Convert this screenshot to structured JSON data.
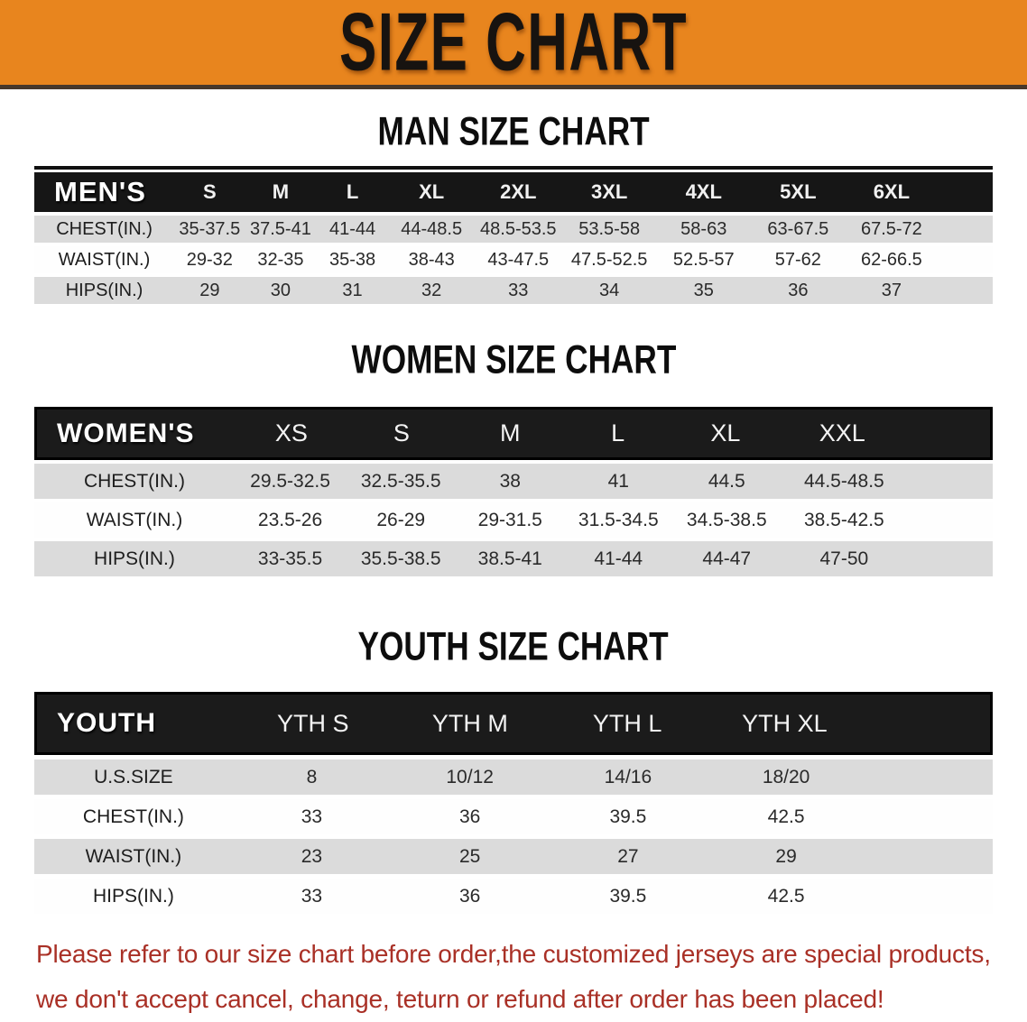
{
  "banner": {
    "title": "SIZE CHART",
    "bg_color": "#E8851E"
  },
  "sections": [
    {
      "heading": "MAN SIZE CHART",
      "table": {
        "corner_label": "MEN'S",
        "columns": [
          "S",
          "M",
          "L",
          "XL",
          "2XL",
          "3XL",
          "4XL",
          "5XL",
          "6XL"
        ],
        "rows": [
          {
            "label": "CHEST(IN.)",
            "values": [
              "35-37.5",
              "37.5-41",
              "41-44",
              "44-48.5",
              "48.5-53.5",
              "53.5-58",
              "58-63",
              "63-67.5",
              "67.5-72"
            ]
          },
          {
            "label": "WAIST(IN.)",
            "values": [
              "29-32",
              "32-35",
              "35-38",
              "38-43",
              "43-47.5",
              "47.5-52.5",
              "52.5-57",
              "57-62",
              "62-66.5"
            ]
          },
          {
            "label": "HIPS(IN.)",
            "values": [
              "29",
              "30",
              "31",
              "32",
              "33",
              "34",
              "35",
              "36",
              "37"
            ]
          }
        ]
      }
    },
    {
      "heading": "WOMEN SIZE CHART",
      "table": {
        "corner_label": "WOMEN'S",
        "columns": [
          "XS",
          "S",
          "M",
          "L",
          "XL",
          "XXL"
        ],
        "rows": [
          {
            "label": "CHEST(IN.)",
            "values": [
              "29.5-32.5",
              "32.5-35.5",
              "38",
              "41",
              "44.5",
              "44.5-48.5"
            ]
          },
          {
            "label": "WAIST(IN.)",
            "values": [
              "23.5-26",
              "26-29",
              "29-31.5",
              "31.5-34.5",
              "34.5-38.5",
              "38.5-42.5"
            ]
          },
          {
            "label": "HIPS(IN.)",
            "values": [
              "33-35.5",
              "35.5-38.5",
              "38.5-41",
              "41-44",
              "44-47",
              "47-50"
            ]
          }
        ]
      }
    },
    {
      "heading": "YOUTH SIZE CHART",
      "table": {
        "corner_label": "YOUTH",
        "columns": [
          "YTH S",
          "YTH M",
          "YTH L",
          "YTH XL"
        ],
        "rows": [
          {
            "label": "U.S.SIZE",
            "values": [
              "8",
              "10/12",
              "14/16",
              "18/20"
            ]
          },
          {
            "label": "CHEST(IN.)",
            "values": [
              "33",
              "36",
              "39.5",
              "42.5"
            ]
          },
          {
            "label": "WAIST(IN.)",
            "values": [
              "23",
              "25",
              "27",
              "29"
            ]
          },
          {
            "label": "HIPS(IN.)",
            "values": [
              "33",
              "36",
              "39.5",
              "42.5"
            ]
          }
        ]
      }
    }
  ],
  "footer": {
    "line1": "Please refer to our size chart before order,the customized jerseys are special products,",
    "line2": "we don't accept cancel, change, teturn or refund after order has been placed!",
    "text_color": "#A93026"
  }
}
